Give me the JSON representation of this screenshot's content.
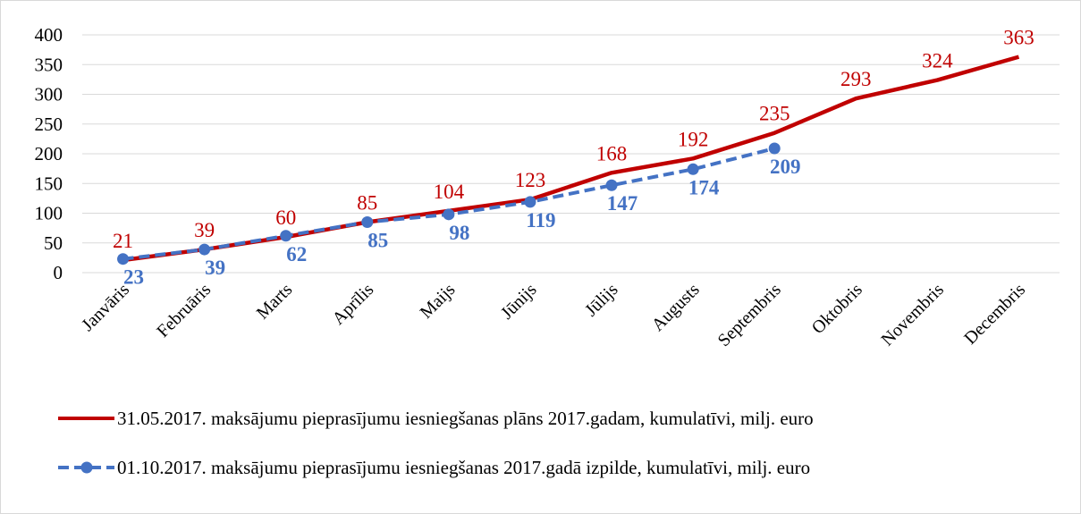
{
  "chart_data": {
    "type": "line",
    "categories": [
      "Janvāris",
      "Februāris",
      "Marts",
      "Aprīlis",
      "Maijs",
      "Jūnijs",
      "Jūlijs",
      "Augusts",
      "Septembris",
      "Oktobris",
      "Novembris",
      "Decembris"
    ],
    "series": [
      {
        "name": "31.05.2017. maksājumu pieprasījumu iesniegšanas plāns 2017.gadam, kumulatīvi, milj. euro",
        "color": "#c00000",
        "style": "solid",
        "markers": false,
        "values": [
          21,
          39,
          60,
          85,
          104,
          123,
          168,
          192,
          235,
          293,
          324,
          363
        ]
      },
      {
        "name": "01.10.2017. maksājumu pieprasījumu iesniegšanas 2017.gadā izpilde, kumulatīvi, milj. euro",
        "color": "#4472c4",
        "style": "dashed",
        "markers": true,
        "values": [
          23,
          39,
          62,
          85,
          98,
          119,
          147,
          174,
          209,
          null,
          null,
          null
        ]
      }
    ],
    "ylim": [
      0,
      400
    ],
    "yticks": [
      0,
      50,
      100,
      150,
      200,
      250,
      300,
      350,
      400
    ],
    "grid": true,
    "legend": "bottom"
  }
}
